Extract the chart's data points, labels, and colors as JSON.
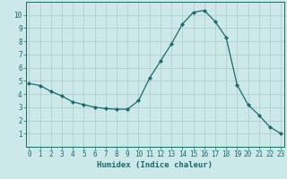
{
  "x": [
    0,
    1,
    2,
    3,
    4,
    5,
    6,
    7,
    8,
    9,
    10,
    11,
    12,
    13,
    14,
    15,
    16,
    17,
    18,
    19,
    20,
    21,
    22,
    23
  ],
  "y": [
    4.8,
    4.65,
    4.2,
    3.85,
    3.4,
    3.2,
    3.0,
    2.9,
    2.85,
    2.85,
    3.5,
    5.2,
    6.5,
    7.8,
    9.3,
    10.2,
    10.35,
    9.5,
    8.3,
    4.7,
    3.2,
    2.4,
    1.5,
    1.0
  ],
  "line_color": "#1a6b6b",
  "marker": "D",
  "marker_size": 2.2,
  "bg_color": "#cce8e8",
  "grid_color": "#b0d0d0",
  "xlabel": "Humidex (Indice chaleur)",
  "ylim": [
    0,
    11
  ],
  "xlim": [
    -0.3,
    23.3
  ],
  "yticks": [
    1,
    2,
    3,
    4,
    5,
    6,
    7,
    8,
    9,
    10
  ],
  "xticks": [
    0,
    1,
    2,
    3,
    4,
    5,
    6,
    7,
    8,
    9,
    10,
    11,
    12,
    13,
    14,
    15,
    16,
    17,
    18,
    19,
    20,
    21,
    22,
    23
  ],
  "tick_color": "#1a6b6b",
  "label_fontsize": 6.5,
  "tick_fontsize": 5.5
}
